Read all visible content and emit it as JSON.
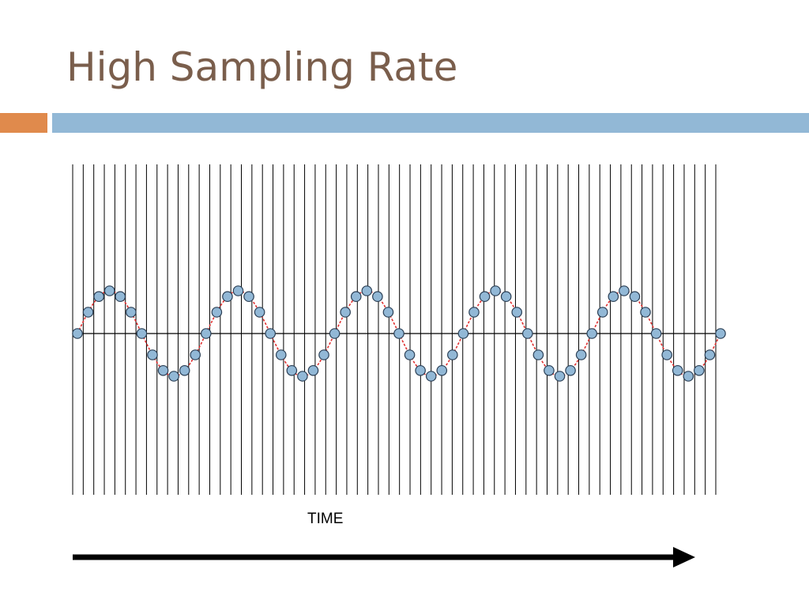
{
  "slide": {
    "title": "High Sampling Rate",
    "axis_label": "TIME"
  },
  "colors": {
    "title": "#7a5e4c",
    "accent_bar": "#e08a4c",
    "rule_bar": "#92b8d6",
    "wave": "#e03030",
    "sample_fill": "#92b8d6",
    "sample_stroke": "#2b3f55",
    "lines": "#000000"
  },
  "diagram": {
    "sampling_lines": 62,
    "cycles": 5,
    "samples_per_cycle": 12
  }
}
